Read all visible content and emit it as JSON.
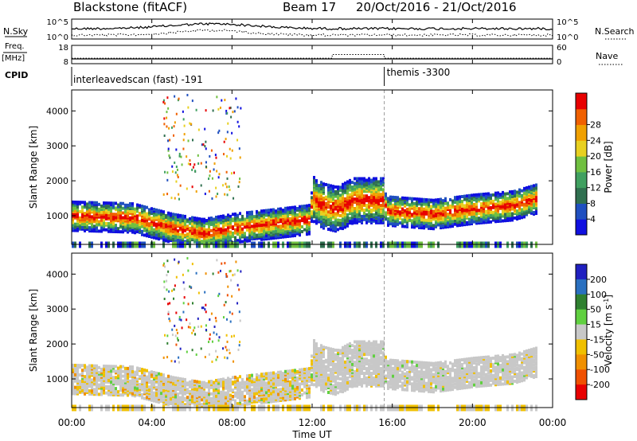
{
  "header": {
    "station": "Blackstone (fitACF)",
    "beam": "Beam 17",
    "date_range": "20/Oct/2016 - 21/Oct/2016"
  },
  "left_labels": {
    "nsky": "N.Sky",
    "freq": "Freq.",
    "freq_unit": "[MHz]",
    "cpid": "CPID"
  },
  "right_labels": {
    "nsearch": "N.Search",
    "nave": "Nave"
  },
  "cpid_segments": [
    {
      "label": "interleavedscan (fast) -191",
      "start_hour": 0,
      "end_hour": 15.6
    },
    {
      "label": "themis -3300",
      "start_hour": 15.6,
      "end_hour": 24
    }
  ],
  "chart_data": [
    {
      "type": "line",
      "name": "noise",
      "left_ticks": [
        "10^5",
        "10^0"
      ],
      "right_ticks": [
        "10^5",
        "10^0"
      ]
    },
    {
      "type": "line",
      "name": "frequency_nave",
      "left_ticks": [
        "18",
        "8"
      ],
      "right_ticks": [
        "60",
        "0"
      ],
      "freq_mhz": [
        {
          "x": 0,
          "y": 10.6
        },
        {
          "x": 24,
          "y": 10.6
        }
      ],
      "nave": [
        {
          "x": 0,
          "y": 18
        },
        {
          "x": 13,
          "y": 18
        },
        {
          "x": 13,
          "y": 30
        },
        {
          "x": 15.6,
          "y": 30
        },
        {
          "x": 15.6,
          "y": 18
        },
        {
          "x": 24,
          "y": 18
        }
      ]
    },
    {
      "type": "heatmap",
      "name": "power",
      "ylabel": "Slant Range [km]",
      "yticks": [
        "1000",
        "2000",
        "3000",
        "4000"
      ],
      "ylim": [
        180,
        4600
      ],
      "colorbar_label": "Power [dB]",
      "colorbar_ticks": [
        "4",
        "8",
        "12",
        "16",
        "20",
        "24",
        "28"
      ],
      "colorbar_colors": [
        "#1010e0",
        "#2050c0",
        "#307050",
        "#40a060",
        "#70c040",
        "#e8d020",
        "#f0a000",
        "#f06000",
        "#e80000"
      ],
      "echo_band_km": [
        [
          0,
          1000
        ],
        [
          3,
          950
        ],
        [
          5,
          650
        ],
        [
          6.5,
          500
        ],
        [
          8,
          650
        ],
        [
          10,
          780
        ],
        [
          11.8,
          900
        ],
        [
          12,
          1500
        ],
        [
          12.5,
          1300
        ],
        [
          13.2,
          1200
        ],
        [
          14,
          1450
        ],
        [
          15.5,
          1450
        ],
        [
          15.7,
          1150
        ],
        [
          18,
          1050
        ],
        [
          20,
          1200
        ],
        [
          22,
          1300
        ],
        [
          23.2,
          1500
        ]
      ]
    },
    {
      "type": "heatmap",
      "name": "velocity",
      "ylabel": "Slant Range [km]",
      "yticks": [
        "1000",
        "2000",
        "3000",
        "4000"
      ],
      "ylim": [
        180,
        4600
      ],
      "colorbar_label": "Velocity [m s^-1]",
      "colorbar_ticks": [
        "200",
        "100",
        "50",
        "15",
        "-15",
        "-50",
        "-100",
        "-200"
      ],
      "colorbar_colors": [
        "#2020c0",
        "#2a70c0",
        "#2f8030",
        "#60d040",
        "#c8c8c8",
        "#f0c000",
        "#f09000",
        "#f05000",
        "#e80000"
      ],
      "xticks": [
        "00:00",
        "04:00",
        "08:00",
        "12:00",
        "16:00",
        "20:00",
        "00:00"
      ],
      "xlabel": "Time UT"
    }
  ]
}
